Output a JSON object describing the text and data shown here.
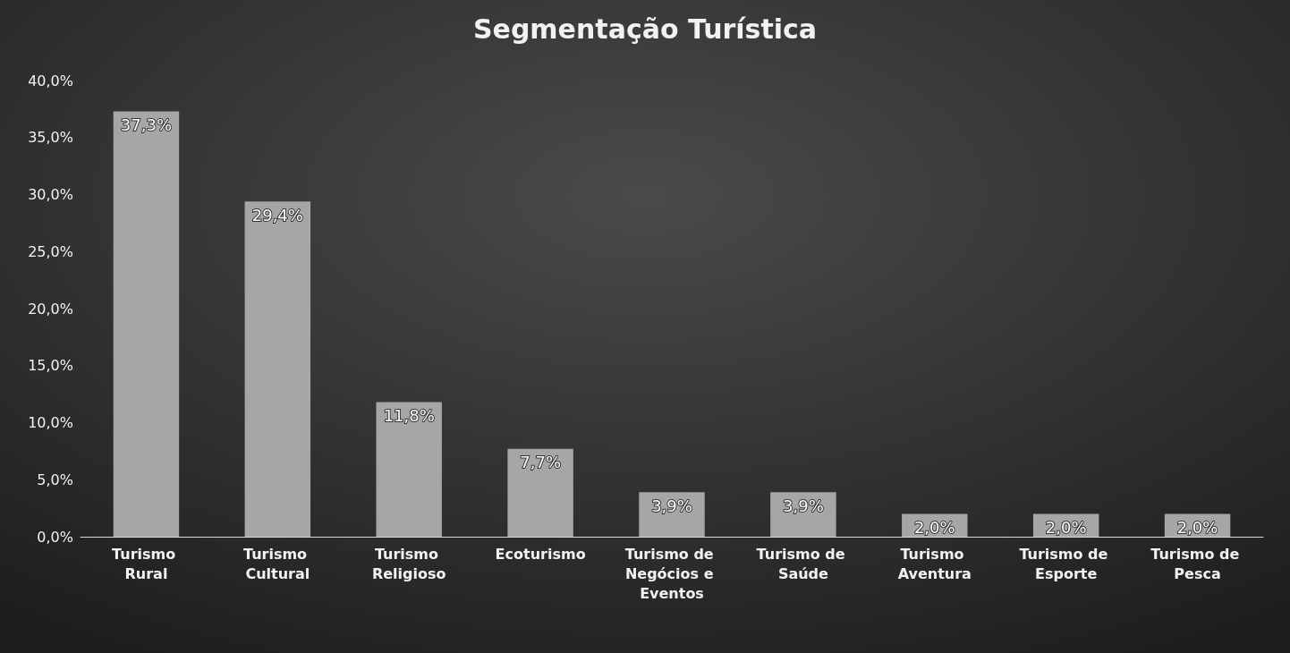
{
  "chart_data": {
    "type": "bar",
    "title": "Segmentação Turística",
    "categories": [
      "Turismo Rural",
      "Turismo Cultural",
      "Turismo Religioso",
      "Ecoturismo",
      "Turismo de Negócios e Eventos",
      "Turismo de Saúde",
      "Turismo Aventura",
      "Turismo de Esporte",
      "Turismo de Pesca"
    ],
    "values": [
      37.3,
      29.4,
      11.8,
      7.7,
      3.9,
      3.9,
      2.0,
      2.0,
      2.0
    ],
    "value_labels": [
      "37,3%",
      "29,4%",
      "11,8%",
      "7,7%",
      "3,9%",
      "3,9%",
      "2,0%",
      "2,0%",
      "2,0%"
    ],
    "color": "#a6a6a6",
    "ylim": [
      0,
      40
    ],
    "yticks": [
      {
        "value": 0,
        "label": "0,0%"
      },
      {
        "value": 5,
        "label": "5,0%"
      },
      {
        "value": 10,
        "label": "10,0%"
      },
      {
        "value": 15,
        "label": "15,0%"
      },
      {
        "value": 20,
        "label": "20,0%"
      },
      {
        "value": 25,
        "label": "25,0%"
      },
      {
        "value": 30,
        "label": "30,0%"
      },
      {
        "value": 35,
        "label": "35,0%"
      },
      {
        "value": 40,
        "label": "40,0%"
      }
    ],
    "grid": false
  }
}
